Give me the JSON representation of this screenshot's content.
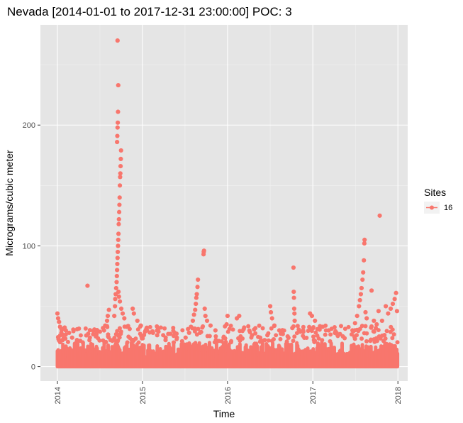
{
  "chart_data": {
    "type": "scatter",
    "title": "Nevada [2014-01-01 to 2017-12-31 23:00:00] POC: 3",
    "xlabel": "Time",
    "ylabel": "Micrograms/cubic meter",
    "x_tick_labels": [
      "2014",
      "2015",
      "2016",
      "2017",
      "2018"
    ],
    "y_tick_labels": [
      "0",
      "100",
      "200"
    ],
    "xlim": [
      "2013-10-20",
      "2018-02-12"
    ],
    "ylim": [
      -12,
      283
    ],
    "grid": true,
    "legend": {
      "title": "Sites",
      "placement": "right",
      "entries": [
        "16"
      ]
    },
    "series": [
      {
        "name": "16",
        "color": "#f8766d",
        "baseline_band_max": 20,
        "points": [
          [
            "2014-01-01",
            44
          ],
          [
            "2014-01-04",
            40
          ],
          [
            "2014-01-08",
            37
          ],
          [
            "2014-01-12",
            33
          ],
          [
            "2014-01-18",
            31
          ],
          [
            "2014-02-06",
            30
          ],
          [
            "2014-02-20",
            28
          ],
          [
            "2014-03-05",
            24
          ],
          [
            "2014-03-26",
            22
          ],
          [
            "2014-05-10",
            67
          ],
          [
            "2014-05-20",
            24
          ],
          [
            "2014-06-15",
            25
          ],
          [
            "2014-07-20",
            30
          ],
          [
            "2014-07-25",
            34
          ],
          [
            "2014-08-02",
            38
          ],
          [
            "2014-08-05",
            42
          ],
          [
            "2014-08-10",
            47
          ],
          [
            "2014-09-02",
            42
          ],
          [
            "2014-09-05",
            50
          ],
          [
            "2014-09-06",
            56
          ],
          [
            "2014-09-08",
            60
          ],
          [
            "2014-09-10",
            65
          ],
          [
            "2014-09-12",
            70
          ],
          [
            "2014-09-13",
            75
          ],
          [
            "2014-09-14",
            80
          ],
          [
            "2014-09-15",
            85
          ],
          [
            "2014-09-16",
            90
          ],
          [
            "2014-09-17",
            95
          ],
          [
            "2014-09-18",
            100
          ],
          [
            "2014-09-19",
            105
          ],
          [
            "2014-09-20",
            110
          ],
          [
            "2014-09-21",
            118
          ],
          [
            "2014-09-22",
            122
          ],
          [
            "2014-09-23",
            128
          ],
          [
            "2014-09-24",
            134
          ],
          [
            "2014-09-25",
            140
          ],
          [
            "2014-09-26",
            150
          ],
          [
            "2014-09-27",
            157
          ],
          [
            "2014-09-28",
            160
          ],
          [
            "2014-09-29",
            166
          ],
          [
            "2014-09-30",
            172
          ],
          [
            "2014-10-01",
            179
          ],
          [
            "2014-09-14",
            186
          ],
          [
            "2014-09-15",
            191
          ],
          [
            "2014-09-16",
            198
          ],
          [
            "2014-09-17",
            202
          ],
          [
            "2014-09-18",
            211
          ],
          [
            "2014-09-19",
            233
          ],
          [
            "2014-09-16",
            270
          ],
          [
            "2014-09-20",
            62
          ],
          [
            "2014-09-22",
            58
          ],
          [
            "2014-09-26",
            54
          ],
          [
            "2014-10-02",
            48
          ],
          [
            "2014-10-08",
            44
          ],
          [
            "2014-10-15",
            40
          ],
          [
            "2014-10-25",
            33
          ],
          [
            "2014-11-20",
            48
          ],
          [
            "2014-11-25",
            44
          ],
          [
            "2014-12-10",
            38
          ],
          [
            "2014-12-25",
            34
          ],
          [
            "2015-01-20",
            30
          ],
          [
            "2015-02-15",
            28
          ],
          [
            "2015-03-05",
            26
          ],
          [
            "2015-04-10",
            22
          ],
          [
            "2015-05-15",
            20
          ],
          [
            "2015-06-20",
            21
          ],
          [
            "2015-07-05",
            24
          ],
          [
            "2015-07-20",
            28
          ],
          [
            "2015-07-28",
            33
          ],
          [
            "2015-08-05",
            38
          ],
          [
            "2015-08-10",
            43
          ],
          [
            "2015-08-15",
            47
          ],
          [
            "2015-08-18",
            52
          ],
          [
            "2015-08-20",
            57
          ],
          [
            "2015-08-22",
            60
          ],
          [
            "2015-08-25",
            66
          ],
          [
            "2015-08-27",
            72
          ],
          [
            "2015-09-20",
            93
          ],
          [
            "2015-09-21",
            95
          ],
          [
            "2015-09-22",
            96
          ],
          [
            "2015-09-25",
            48
          ],
          [
            "2015-09-28",
            42
          ],
          [
            "2015-10-05",
            38
          ],
          [
            "2015-10-20",
            34
          ],
          [
            "2015-11-10",
            30
          ],
          [
            "2015-12-28",
            35
          ],
          [
            "2016-01-01",
            42
          ],
          [
            "2016-02-10",
            40
          ],
          [
            "2016-02-20",
            42
          ],
          [
            "2016-03-10",
            31
          ],
          [
            "2016-04-15",
            26
          ],
          [
            "2016-05-20",
            24
          ],
          [
            "2016-06-20",
            26
          ],
          [
            "2016-07-02",
            50
          ],
          [
            "2016-07-05",
            45
          ],
          [
            "2016-07-10",
            40
          ],
          [
            "2016-07-20",
            34
          ],
          [
            "2016-08-10",
            30
          ],
          [
            "2016-08-25",
            27
          ],
          [
            "2016-09-15",
            25
          ],
          [
            "2016-10-05",
            32
          ],
          [
            "2016-10-10",
            82
          ],
          [
            "2016-10-11",
            62
          ],
          [
            "2016-10-12",
            57
          ],
          [
            "2016-10-13",
            48
          ],
          [
            "2016-10-14",
            44
          ],
          [
            "2016-10-15",
            38
          ],
          [
            "2016-11-20",
            30
          ],
          [
            "2016-12-20",
            44
          ],
          [
            "2016-12-28",
            42
          ],
          [
            "2017-01-10",
            38
          ],
          [
            "2017-02-10",
            33
          ],
          [
            "2017-03-10",
            30
          ],
          [
            "2017-04-15",
            27
          ],
          [
            "2017-05-10",
            25
          ],
          [
            "2017-06-20",
            30
          ],
          [
            "2017-07-01",
            36
          ],
          [
            "2017-07-10",
            42
          ],
          [
            "2017-07-18",
            50
          ],
          [
            "2017-07-22",
            55
          ],
          [
            "2017-07-26",
            60
          ],
          [
            "2017-07-29",
            65
          ],
          [
            "2017-08-02",
            72
          ],
          [
            "2017-08-05",
            78
          ],
          [
            "2017-08-08",
            88
          ],
          [
            "2017-08-10",
            102
          ],
          [
            "2017-08-11",
            105
          ],
          [
            "2017-08-15",
            45
          ],
          [
            "2017-08-20",
            40
          ],
          [
            "2017-09-10",
            63
          ],
          [
            "2017-09-20",
            38
          ],
          [
            "2017-10-02",
            35
          ],
          [
            "2017-10-10",
            46
          ],
          [
            "2017-10-15",
            125
          ],
          [
            "2017-10-25",
            38
          ],
          [
            "2017-11-10",
            50
          ],
          [
            "2017-11-20",
            44
          ],
          [
            "2017-12-01",
            48
          ],
          [
            "2017-12-10",
            52
          ],
          [
            "2017-12-18",
            56
          ],
          [
            "2017-12-24",
            61
          ],
          [
            "2017-12-28",
            46
          ]
        ]
      }
    ]
  }
}
